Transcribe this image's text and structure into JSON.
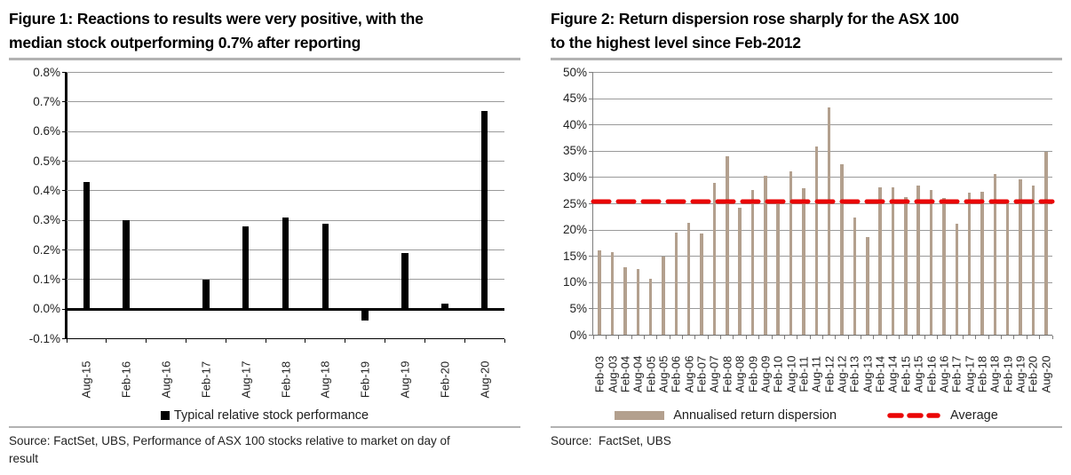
{
  "figure1": {
    "title": "Figure 1: Reactions to results were very positive, with the\nmedian stock outperforming 0.7% after reporting",
    "legend_label": "Typical relative stock performance",
    "source": "Source: FactSet, UBS, Performance of ASX 100 stocks relative to market on day of\nresult"
  },
  "figure2": {
    "title": "Figure 2: Return dispersion rose sharply for the ASX 100\nto the highest level since Feb-2012",
    "legend_bar_label": "Annualised return dispersion",
    "legend_avg_label": "Average",
    "source": "Source:  FactSet, UBS"
  },
  "chart_data": [
    {
      "id": "fig1",
      "type": "bar",
      "title": "Figure 1: Reactions to results were very positive, with the median stock outperforming 0.7% after reporting",
      "xlabel": "",
      "ylabel": "",
      "categories": [
        "Aug-15",
        "Feb-16",
        "Aug-16",
        "Feb-17",
        "Aug-17",
        "Feb-18",
        "Aug-18",
        "Feb-19",
        "Aug-19",
        "Feb-20",
        "Aug-20"
      ],
      "series": [
        {
          "name": "Typical relative stock performance",
          "values": [
            0.43,
            0.3,
            0.005,
            0.1,
            0.28,
            0.31,
            0.29,
            -0.04,
            0.19,
            0.02,
            0.67
          ]
        }
      ],
      "ylim": [
        -0.1,
        0.8
      ],
      "yticks": {
        "values": [
          0.8,
          0.7,
          0.6,
          0.5,
          0.4,
          0.3,
          0.2,
          0.1,
          0.0,
          -0.1
        ],
        "labels": [
          "0.8%",
          "0.7%",
          "0.6%",
          "0.5%",
          "0.4%",
          "0.3%",
          "0.2%",
          "0.1%",
          "0.0%",
          "-0.1%"
        ]
      },
      "grid": true,
      "legend_position": "bottom",
      "bar_color": "#000000"
    },
    {
      "id": "fig2",
      "type": "bar",
      "title": "Figure 2: Return dispersion rose sharply for the ASX 100 to the highest level since Feb-2012",
      "xlabel": "",
      "ylabel": "",
      "categories": [
        "Feb-03",
        "Aug-03",
        "Feb-04",
        "Aug-04",
        "Feb-05",
        "Aug-05",
        "Feb-06",
        "Aug-06",
        "Feb-07",
        "Aug-07",
        "Feb-08",
        "Aug-08",
        "Feb-09",
        "Aug-09",
        "Feb-10",
        "Aug-10",
        "Feb-11",
        "Aug-11",
        "Feb-12",
        "Aug-12",
        "Feb-13",
        "Aug-13",
        "Feb-14",
        "Aug-14",
        "Feb-15",
        "Aug-15",
        "Feb-16",
        "Aug-16",
        "Feb-17",
        "Aug-17",
        "Feb-18",
        "Aug-18",
        "Feb-19",
        "Aug-19",
        "Feb-20",
        "Aug-20"
      ],
      "series": [
        {
          "name": "Annualised return dispersion",
          "values": [
            16.2,
            15.8,
            13.0,
            12.6,
            10.7,
            15.0,
            19.5,
            21.3,
            19.3,
            29.0,
            34.0,
            24.3,
            27.7,
            30.3,
            25.1,
            31.1,
            27.9,
            35.9,
            43.3,
            32.5,
            22.3,
            18.6,
            28.2,
            28.2,
            26.2,
            28.4,
            27.6,
            26.1,
            21.2,
            27.1,
            27.3,
            30.6,
            25.3,
            29.6,
            28.4,
            34.8
          ]
        }
      ],
      "average_line": {
        "label": "Average",
        "value": 25.5,
        "color": "#ea0606",
        "style": "dashed"
      },
      "ylim": [
        0,
        50
      ],
      "yticks": {
        "values": [
          50,
          45,
          40,
          35,
          30,
          25,
          20,
          15,
          10,
          5,
          0
        ],
        "labels": [
          "50%",
          "45%",
          "40%",
          "35%",
          "30%",
          "25%",
          "20%",
          "15%",
          "10%",
          "5%",
          "0%"
        ]
      },
      "grid": true,
      "legend_position": "bottom",
      "bar_color": "#b3a08e"
    }
  ]
}
